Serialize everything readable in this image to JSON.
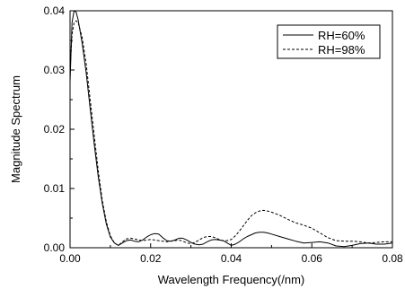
{
  "chart_data": {
    "type": "line",
    "xlabel": "Wavelength Frequency(/nm)",
    "ylabel": "Magnitude Spectrum",
    "xlim": [
      0.0,
      0.08
    ],
    "ylim": [
      0.0,
      0.04
    ],
    "x_ticks": [
      "0.00",
      "0.02",
      "0.04",
      "0.06",
      "0.08"
    ],
    "y_ticks": [
      "0.00",
      "0.01",
      "0.02",
      "0.03",
      "0.04"
    ],
    "grid": false,
    "legend_position": "top-right",
    "series": [
      {
        "name": "RH=60%",
        "style": "solid",
        "color": "#000000",
        "x": [
          0.0,
          0.0005,
          0.001,
          0.0015,
          0.002,
          0.003,
          0.004,
          0.005,
          0.006,
          0.007,
          0.008,
          0.009,
          0.01,
          0.011,
          0.012,
          0.013,
          0.014,
          0.015,
          0.016,
          0.017,
          0.018,
          0.019,
          0.02,
          0.021,
          0.022,
          0.023,
          0.024,
          0.025,
          0.026,
          0.027,
          0.028,
          0.029,
          0.03,
          0.031,
          0.032,
          0.033,
          0.034,
          0.035,
          0.036,
          0.037,
          0.038,
          0.039,
          0.04,
          0.041,
          0.042,
          0.043,
          0.044,
          0.045,
          0.046,
          0.047,
          0.048,
          0.049,
          0.05,
          0.052,
          0.054,
          0.056,
          0.058,
          0.06,
          0.062,
          0.064,
          0.066,
          0.068,
          0.07,
          0.072,
          0.074,
          0.076,
          0.078,
          0.08
        ],
        "values": [
          0.028,
          0.038,
          0.04,
          0.0398,
          0.0385,
          0.0345,
          0.0295,
          0.0235,
          0.0175,
          0.012,
          0.0075,
          0.004,
          0.0018,
          0.0008,
          0.0004,
          0.0008,
          0.0012,
          0.0013,
          0.0011,
          0.001,
          0.0013,
          0.0018,
          0.0022,
          0.0024,
          0.0023,
          0.0017,
          0.0012,
          0.0011,
          0.0013,
          0.0016,
          0.0016,
          0.0013,
          0.0009,
          0.0006,
          0.0005,
          0.0006,
          0.001,
          0.0013,
          0.0014,
          0.0013,
          0.0012,
          0.0008,
          0.0004,
          0.0006,
          0.001,
          0.0015,
          0.0019,
          0.0022,
          0.0025,
          0.0026,
          0.0026,
          0.0025,
          0.0023,
          0.0019,
          0.0015,
          0.0011,
          0.0008,
          0.0009,
          0.001,
          0.0008,
          0.0003,
          0.0002,
          0.0004,
          0.0007,
          0.0008,
          0.0006,
          0.0006,
          0.0008
        ]
      },
      {
        "name": "RH=98%",
        "style": "dashed",
        "color": "#000000",
        "x": [
          0.0,
          0.0005,
          0.001,
          0.0015,
          0.002,
          0.003,
          0.004,
          0.005,
          0.006,
          0.007,
          0.008,
          0.009,
          0.01,
          0.011,
          0.012,
          0.013,
          0.014,
          0.015,
          0.016,
          0.017,
          0.018,
          0.019,
          0.02,
          0.021,
          0.022,
          0.023,
          0.024,
          0.025,
          0.026,
          0.027,
          0.028,
          0.029,
          0.03,
          0.031,
          0.032,
          0.033,
          0.034,
          0.035,
          0.036,
          0.037,
          0.038,
          0.039,
          0.04,
          0.041,
          0.042,
          0.043,
          0.044,
          0.045,
          0.046,
          0.047,
          0.048,
          0.049,
          0.05,
          0.052,
          0.054,
          0.056,
          0.058,
          0.06,
          0.062,
          0.064,
          0.066,
          0.068,
          0.07,
          0.072,
          0.074,
          0.076,
          0.078,
          0.08
        ],
        "values": [
          0.03,
          0.036,
          0.038,
          0.0383,
          0.038,
          0.0355,
          0.031,
          0.025,
          0.019,
          0.013,
          0.008,
          0.0044,
          0.002,
          0.0008,
          0.0004,
          0.001,
          0.0015,
          0.0016,
          0.0015,
          0.0013,
          0.0012,
          0.0013,
          0.0014,
          0.0013,
          0.0012,
          0.0011,
          0.001,
          0.0011,
          0.0012,
          0.0013,
          0.0011,
          0.0008,
          0.0007,
          0.0009,
          0.0013,
          0.0017,
          0.0019,
          0.0019,
          0.0017,
          0.0014,
          0.0012,
          0.0012,
          0.0014,
          0.002,
          0.0028,
          0.0037,
          0.0046,
          0.0054,
          0.0059,
          0.0062,
          0.0063,
          0.0062,
          0.006,
          0.0055,
          0.0048,
          0.0042,
          0.0038,
          0.0033,
          0.0025,
          0.0017,
          0.0012,
          0.0011,
          0.0011,
          0.001,
          0.0008,
          0.0009,
          0.001,
          0.001
        ]
      }
    ]
  }
}
